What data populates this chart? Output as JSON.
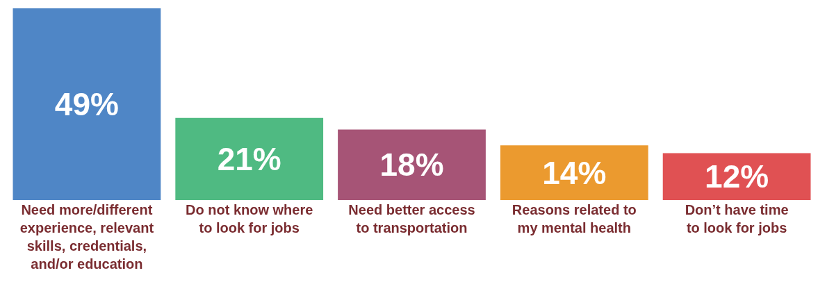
{
  "chart_data": {
    "type": "bar",
    "categories": [
      "Need more/different experience, relevant skills, credentials, and/or education",
      "Do not know where to look for jobs",
      "Need better access to transportation",
      "Reasons related to my mental health",
      "Don’t have time to look for jobs"
    ],
    "values": [
      49,
      21,
      18,
      14,
      12
    ],
    "colors": [
      "#4f86c6",
      "#4fba82",
      "#a65476",
      "#eb9a2f",
      "#e05153"
    ],
    "value_labels": [
      "49%",
      "21%",
      "18%",
      "14%",
      "12%"
    ],
    "data_labels": true
  }
}
